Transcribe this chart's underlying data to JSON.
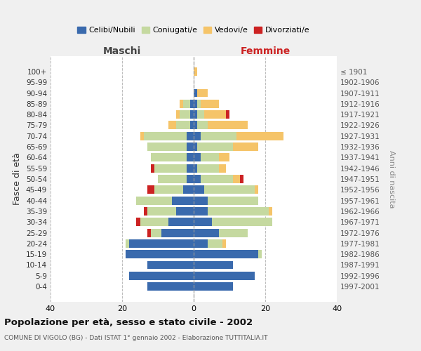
{
  "age_groups": [
    "0-4",
    "5-9",
    "10-14",
    "15-19",
    "20-24",
    "25-29",
    "30-34",
    "35-39",
    "40-44",
    "45-49",
    "50-54",
    "55-59",
    "60-64",
    "65-69",
    "70-74",
    "75-79",
    "80-84",
    "85-89",
    "90-94",
    "95-99",
    "100+"
  ],
  "birth_years": [
    "1997-2001",
    "1992-1996",
    "1987-1991",
    "1982-1986",
    "1977-1981",
    "1972-1976",
    "1967-1971",
    "1962-1966",
    "1957-1961",
    "1952-1956",
    "1947-1951",
    "1942-1946",
    "1937-1941",
    "1932-1936",
    "1927-1931",
    "1922-1926",
    "1917-1921",
    "1912-1916",
    "1907-1911",
    "1902-1906",
    "≤ 1901"
  ],
  "male": {
    "celibi": [
      13,
      18,
      13,
      19,
      18,
      9,
      7,
      5,
      6,
      3,
      2,
      2,
      2,
      2,
      2,
      1,
      1,
      1,
      0,
      0,
      0
    ],
    "coniugati": [
      0,
      0,
      0,
      0,
      1,
      3,
      8,
      8,
      10,
      8,
      8,
      9,
      10,
      11,
      12,
      4,
      3,
      2,
      0,
      0,
      0
    ],
    "vedovi": [
      0,
      0,
      0,
      0,
      0,
      0,
      0,
      0,
      0,
      0,
      0,
      0,
      0,
      0,
      1,
      2,
      1,
      1,
      0,
      0,
      0
    ],
    "divorziati": [
      0,
      0,
      0,
      0,
      0,
      1,
      1,
      1,
      0,
      2,
      0,
      1,
      0,
      0,
      0,
      0,
      0,
      0,
      0,
      0,
      0
    ]
  },
  "female": {
    "nubili": [
      11,
      17,
      11,
      18,
      4,
      7,
      5,
      4,
      4,
      3,
      2,
      1,
      2,
      1,
      2,
      1,
      1,
      1,
      1,
      0,
      0
    ],
    "coniugate": [
      0,
      0,
      0,
      1,
      4,
      8,
      17,
      17,
      14,
      14,
      9,
      6,
      5,
      10,
      10,
      3,
      2,
      1,
      0,
      0,
      0
    ],
    "vedove": [
      0,
      0,
      0,
      0,
      1,
      0,
      0,
      1,
      0,
      1,
      2,
      2,
      3,
      7,
      13,
      11,
      6,
      5,
      3,
      0,
      1
    ],
    "divorziate": [
      0,
      0,
      0,
      0,
      0,
      0,
      0,
      0,
      0,
      0,
      1,
      0,
      0,
      0,
      0,
      0,
      1,
      0,
      0,
      0,
      0
    ]
  },
  "colors": {
    "celibi": "#3a6aad",
    "coniugati": "#c5d9a0",
    "vedovi": "#f5c469",
    "divorziati": "#cc2222"
  },
  "xlim": 40,
  "title": "Popolazione per età, sesso e stato civile - 2002",
  "subtitle": "COMUNE DI VIGOLO (BG) - Dati ISTAT 1° gennaio 2002 - Elaborazione TUTTITALIA.IT",
  "ylabel": "Fasce di età",
  "ylabel_right": "Anni di nascita",
  "legend_labels": [
    "Celibi/Nubili",
    "Coniugati/e",
    "Vedovi/e",
    "Divorziati/e"
  ],
  "header_maschi": "Maschi",
  "header_femmine": "Femmine",
  "bg_color": "#f0f0f0",
  "plot_bg": "#ffffff"
}
